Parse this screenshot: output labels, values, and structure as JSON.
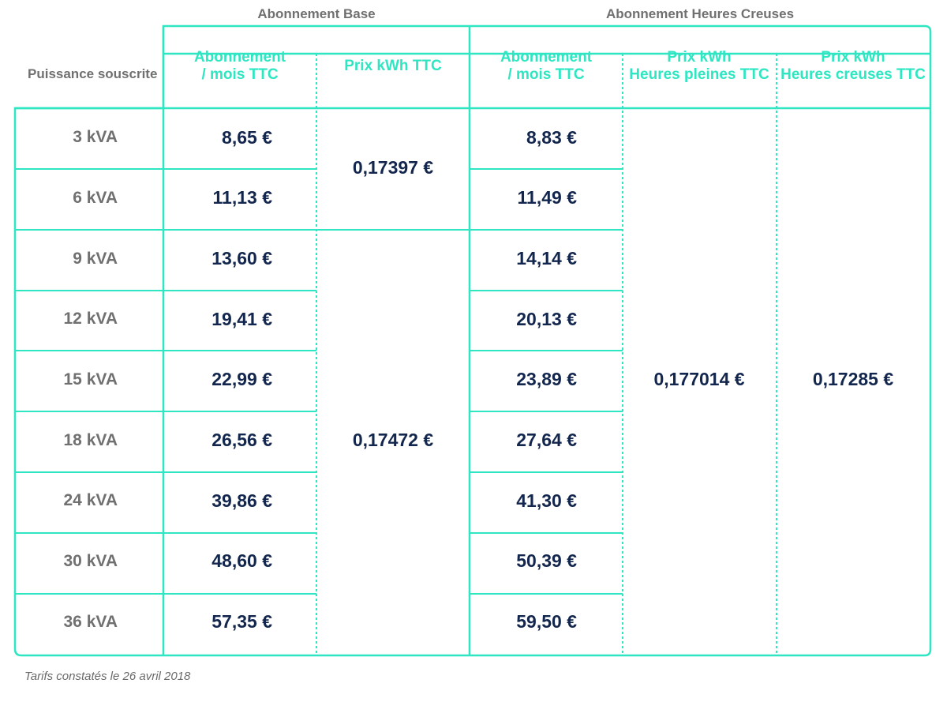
{
  "header": {
    "group_base": "Abonnement Base",
    "group_hc": "Abonnement Heures Creuses",
    "row_label": "Puissance souscrite",
    "col_abonnement_line1": "Abonnement",
    "col_abonnement_line2": "/ mois TTC",
    "col_prix_kwh": "Prix kWh TTC",
    "col_hp_line1": "Prix kWh",
    "col_hp_line2": "Heures pleines TTC",
    "col_hc_line1": "Prix kWh",
    "col_hc_line2": "Heures creuses TTC"
  },
  "rows": [
    {
      "power": "3 kVA",
      "base_monthly": "8,65 €",
      "hc_monthly": "8,83 €"
    },
    {
      "power": "6 kVA",
      "base_monthly": "11,13 €",
      "hc_monthly": "11,49 €"
    },
    {
      "power": "9 kVA",
      "base_monthly": "13,60 €",
      "hc_monthly": "14,14 €"
    },
    {
      "power": "12 kVA",
      "base_monthly": "19,41 €",
      "hc_monthly": "20,13 €"
    },
    {
      "power": "15 kVA",
      "base_monthly": "22,99 €",
      "hc_monthly": "23,89 €"
    },
    {
      "power": "18 kVA",
      "base_monthly": "26,56 €",
      "hc_monthly": "27,64 €"
    },
    {
      "power": "24 kVA",
      "base_monthly": "39,86 €",
      "hc_monthly": "41,30 €"
    },
    {
      "power": "30 kVA",
      "base_monthly": "48,60 €",
      "hc_monthly": "50,39 €"
    },
    {
      "power": "36 kVA",
      "base_monthly": "57,35 €",
      "hc_monthly": "59,50 €"
    }
  ],
  "merged": {
    "base_kwh_low": "0,17397 €",
    "base_kwh_high": "0,17472 €",
    "hp_kwh": "0,177014 €",
    "hc_kwh": "0,17285 €"
  },
  "footnote": "Tarifs constatés le 26 avril 2018",
  "colors": {
    "accent": "#2ee6c2",
    "value": "#13264d",
    "label": "#707070"
  }
}
